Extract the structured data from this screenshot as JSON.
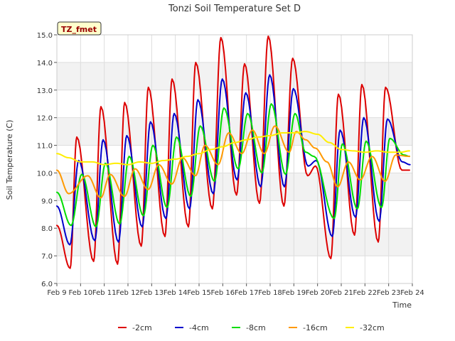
{
  "chart_data": {
    "type": "line",
    "title": "Tonzi Soil Temperature Set D",
    "xlabel": "Time",
    "ylabel": "Soil Temperature (C)",
    "ylim": [
      6.0,
      15.0
    ],
    "xlim": [
      9,
      24
    ],
    "y_ticks": [
      "6.0",
      "7.0",
      "8.0",
      "9.0",
      "10.0",
      "11.0",
      "12.0",
      "13.0",
      "14.0",
      "15.0"
    ],
    "x_ticks": [
      "Feb 9",
      "Feb 10",
      "Feb 11",
      "Feb 12",
      "Feb 13",
      "Feb 14",
      "Feb 15",
      "Feb 16",
      "Feb 17",
      "Feb 18",
      "Feb 19",
      "Feb 20",
      "Feb 21",
      "Feb 22",
      "Feb 23",
      "Feb 24"
    ],
    "x_tick_values": [
      9,
      10,
      11,
      12,
      13,
      14,
      15,
      16,
      17,
      18,
      19,
      20,
      21,
      22,
      23,
      24
    ],
    "x_unit": "day of February",
    "grid": true,
    "banded_background": true,
    "annotation": "TZ_fmet",
    "legend_position": "bottom",
    "series": [
      {
        "name": "-2cm",
        "color": "#dd0000",
        "x": [
          9.0,
          9.56,
          9.84,
          10.55,
          10.86,
          11.56,
          11.86,
          12.56,
          12.86,
          13.56,
          13.86,
          14.55,
          14.86,
          15.56,
          15.92,
          16.58,
          16.92,
          17.55,
          17.92,
          18.58,
          18.95,
          19.58,
          19.92,
          20.56,
          20.88,
          21.56,
          21.87,
          22.56,
          22.87,
          23.56,
          23.88
        ],
        "values": [
          8.1,
          6.55,
          11.3,
          6.8,
          12.4,
          6.7,
          12.55,
          7.35,
          13.1,
          7.7,
          13.4,
          8.05,
          14.0,
          8.7,
          14.9,
          9.2,
          13.95,
          8.9,
          14.95,
          8.8,
          14.15,
          9.9,
          10.25,
          6.9,
          12.85,
          7.75,
          13.2,
          7.5,
          13.1,
          10.1,
          10.1
        ]
      },
      {
        "name": "-4cm",
        "color": "#0000cc",
        "x": [
          9.0,
          9.55,
          9.92,
          10.6,
          10.95,
          11.6,
          11.95,
          12.6,
          12.95,
          13.6,
          13.95,
          14.6,
          14.95,
          15.6,
          15.98,
          16.6,
          16.97,
          17.6,
          17.98,
          18.6,
          18.98,
          19.6,
          19.95,
          20.62,
          20.95,
          21.6,
          21.95,
          22.6,
          22.95,
          23.58,
          23.9
        ],
        "values": [
          8.8,
          7.4,
          10.45,
          7.55,
          11.2,
          7.5,
          11.35,
          8.05,
          11.85,
          8.35,
          12.15,
          8.7,
          12.65,
          9.25,
          13.4,
          9.75,
          12.9,
          9.5,
          13.55,
          9.5,
          13.05,
          10.25,
          10.45,
          7.7,
          11.55,
          8.4,
          12.0,
          8.25,
          11.95,
          10.4,
          10.3
        ]
      },
      {
        "name": "-8cm",
        "color": "#00dd00",
        "x": [
          9.0,
          9.6,
          10.05,
          10.65,
          11.05,
          11.65,
          12.05,
          12.65,
          13.05,
          13.65,
          14.05,
          14.65,
          15.05,
          15.65,
          16.05,
          16.65,
          17.05,
          17.65,
          18.05,
          18.65,
          19.05,
          19.5,
          19.85,
          20.7,
          21.05,
          21.68,
          22.05,
          22.7,
          23.05,
          23.65,
          23.88
        ],
        "values": [
          9.3,
          8.1,
          9.95,
          8.05,
          10.35,
          8.15,
          10.6,
          8.45,
          11.0,
          8.75,
          11.3,
          9.15,
          11.7,
          9.7,
          12.35,
          10.15,
          12.15,
          10.0,
          12.5,
          9.95,
          12.15,
          10.75,
          10.6,
          8.35,
          11.05,
          8.7,
          11.15,
          8.75,
          11.25,
          10.65,
          10.6
        ]
      },
      {
        "name": "-16cm",
        "color": "#ff9900",
        "x": [
          9.0,
          9.5,
          10.3,
          10.85,
          11.25,
          11.85,
          12.3,
          12.85,
          13.3,
          13.85,
          14.3,
          14.85,
          15.25,
          15.8,
          16.25,
          16.8,
          17.25,
          17.75,
          18.2,
          18.8,
          19.1,
          19.5,
          19.9,
          20.4,
          20.85,
          21.3,
          21.8,
          22.3,
          22.85,
          23.3,
          23.88
        ],
        "values": [
          10.1,
          9.25,
          9.9,
          9.1,
          9.95,
          9.15,
          10.15,
          9.4,
          10.3,
          9.6,
          10.55,
          9.9,
          11.0,
          10.3,
          11.45,
          10.7,
          11.55,
          10.7,
          11.7,
          10.75,
          11.5,
          11.2,
          10.9,
          10.4,
          9.5,
          10.4,
          9.75,
          10.6,
          9.7,
          10.65,
          10.6
        ]
      },
      {
        "name": "-32cm",
        "color": "#ffee00",
        "x": [
          9.0,
          9.5,
          10.0,
          10.5,
          11.0,
          11.5,
          12.0,
          12.5,
          13.0,
          13.5,
          14.0,
          14.5,
          15.0,
          15.5,
          16.0,
          16.5,
          17.0,
          17.5,
          18.0,
          18.5,
          19.0,
          19.5,
          20.0,
          20.5,
          21.0,
          21.5,
          22.0,
          22.5,
          23.0,
          23.5,
          23.88
        ],
        "values": [
          10.7,
          10.55,
          10.4,
          10.4,
          10.3,
          10.35,
          10.3,
          10.4,
          10.35,
          10.45,
          10.5,
          10.6,
          10.7,
          10.85,
          10.95,
          11.1,
          11.2,
          11.3,
          11.35,
          11.45,
          11.45,
          11.5,
          11.4,
          11.1,
          10.85,
          10.8,
          10.75,
          10.8,
          10.75,
          10.75,
          10.8
        ]
      }
    ]
  }
}
